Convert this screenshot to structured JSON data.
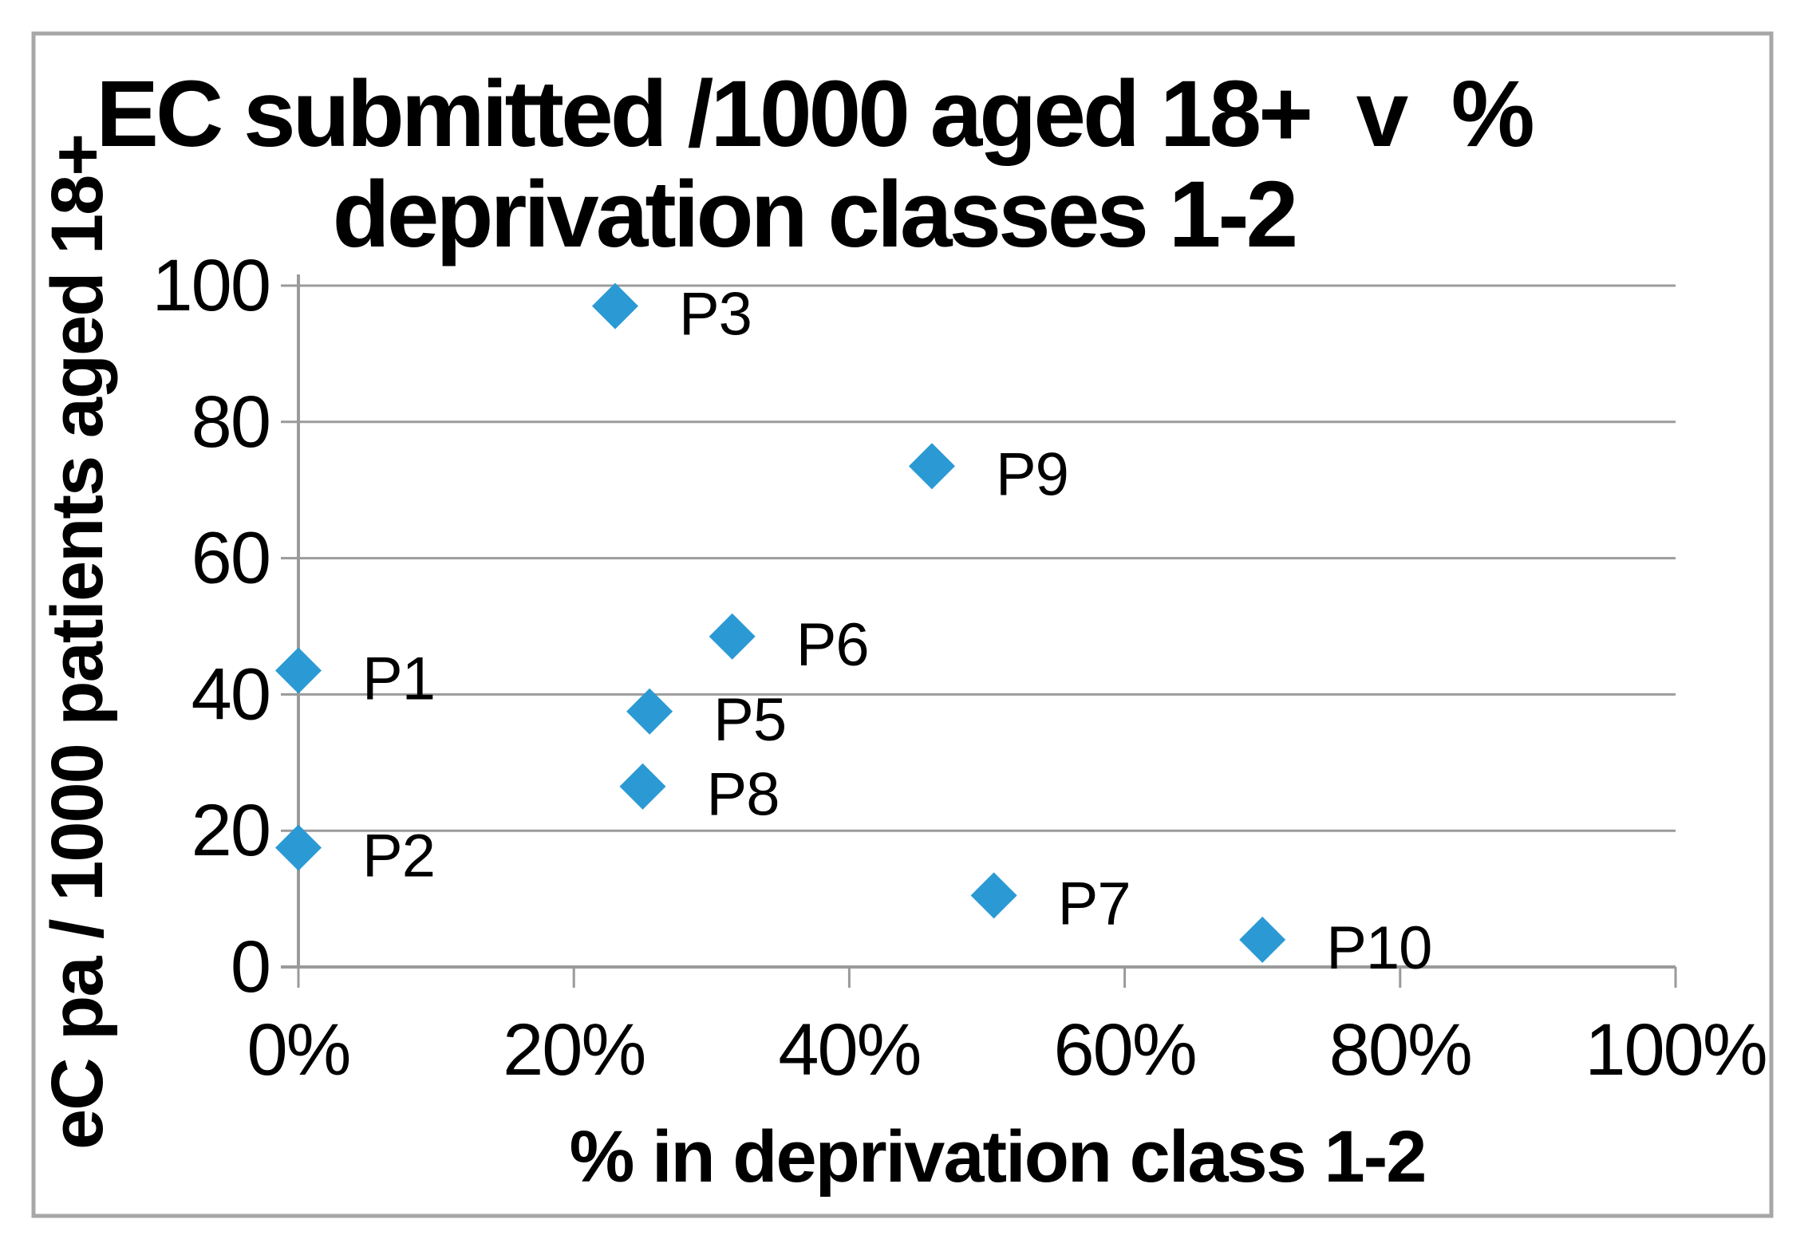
{
  "chart_data": {
    "type": "scatter",
    "title": {
      "line1": "EC submitted /1000 aged 18+  v  %",
      "line2": "deprivation classes 1-2"
    },
    "x_axis": {
      "label": "% in deprivation class 1-2",
      "min": 0,
      "max": 100,
      "ticks": [
        {
          "value": 0,
          "label": "0%"
        },
        {
          "value": 20,
          "label": "20%"
        },
        {
          "value": 40,
          "label": "40%"
        },
        {
          "value": 60,
          "label": "60%"
        },
        {
          "value": 80,
          "label": "80%"
        },
        {
          "value": 100,
          "label": "100%"
        }
      ]
    },
    "y_axis": {
      "label": "eC pa / 1000 patients aged 18+",
      "min": 0,
      "max": 100,
      "ticks": [
        {
          "value": 0,
          "label": "0"
        },
        {
          "value": 20,
          "label": "20"
        },
        {
          "value": 40,
          "label": "40"
        },
        {
          "value": 60,
          "label": "60"
        },
        {
          "value": 80,
          "label": "80"
        },
        {
          "value": 100,
          "label": "100"
        }
      ]
    },
    "grid": "horizontal",
    "legend": "none",
    "marker": "diamond",
    "points": [
      {
        "label": "P1",
        "x": 0,
        "y": 43.5
      },
      {
        "label": "P2",
        "x": 0,
        "y": 17.5
      },
      {
        "label": "P3",
        "x": 23,
        "y": 97
      },
      {
        "label": "P5",
        "x": 25.5,
        "y": 37.5
      },
      {
        "label": "P6",
        "x": 31.5,
        "y": 48.5
      },
      {
        "label": "P7",
        "x": 50.5,
        "y": 10.5
      },
      {
        "label": "P8",
        "x": 25,
        "y": 26.5
      },
      {
        "label": "P9",
        "x": 46,
        "y": 73.5
      },
      {
        "label": "P10",
        "x": 70,
        "y": 4
      }
    ],
    "colors": {
      "marker": "#2B9AD4",
      "gridline": "#9C9C9C",
      "axis": "#9A9A9A",
      "border": "#A7A7A7",
      "text": "#000000",
      "background": "#FFFFFF"
    }
  }
}
